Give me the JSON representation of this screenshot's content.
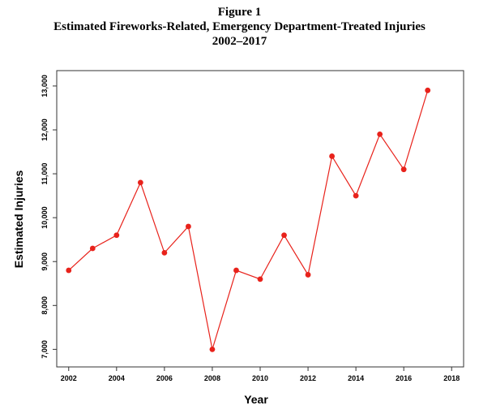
{
  "figure": {
    "number": "Figure 1",
    "title": "Estimated Fireworks-Related, Emergency Department-Treated Injuries",
    "subtitle": "2002–2017"
  },
  "chart_data": {
    "type": "line",
    "title": "Estimated Fireworks-Related, Emergency Department-Treated Injuries",
    "xlabel": "Year",
    "ylabel": "Estimated Injuries",
    "xlim": [
      2001.5,
      2018.5
    ],
    "ylim": [
      6600,
      13350
    ],
    "xticks": [
      2002,
      2004,
      2006,
      2008,
      2010,
      2012,
      2014,
      2016,
      2018
    ],
    "xtick_labels": [
      "2002",
      "2004",
      "2006",
      "2008",
      "2010",
      "2012",
      "2014",
      "2016",
      "2018"
    ],
    "yticks": [
      7000,
      8000,
      9000,
      10000,
      11000,
      12000,
      13000
    ],
    "ytick_labels": [
      "7,000",
      "8,000",
      "9,000",
      "10,000",
      "11,000",
      "12,000",
      "13,000"
    ],
    "grid": false,
    "series": [
      {
        "color": "#e8221b",
        "x": [
          2002,
          2003,
          2004,
          2005,
          2006,
          2007,
          2008,
          2009,
          2010,
          2011,
          2012,
          2013,
          2014,
          2015,
          2016,
          2017
        ],
        "y": [
          8800,
          9300,
          9600,
          10800,
          9200,
          9800,
          7000,
          8800,
          8600,
          9600,
          8700,
          11400,
          10500,
          11900,
          11100,
          12900
        ]
      }
    ]
  }
}
